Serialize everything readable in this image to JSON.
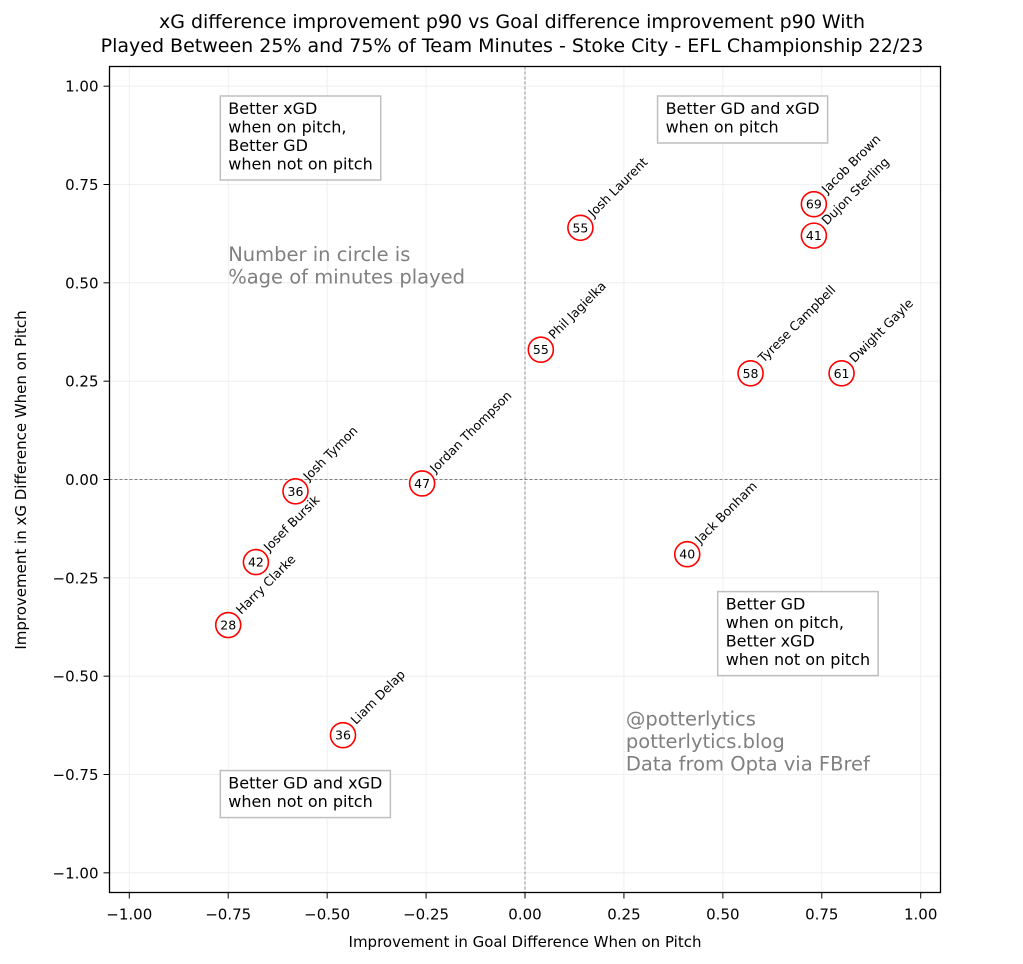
{
  "chart_data": {
    "type": "scatter",
    "title": "xG difference improvement p90 vs Goal difference improvement p90 With\nPlayed Between 25% and 75% of Team Minutes - Stoke City - EFL Championship 22/23",
    "xlabel": "Improvement in Goal Difference When on Pitch",
    "ylabel": "Improvement in xG Difference When on Pitch",
    "xlim": [
      -1.05,
      1.05
    ],
    "ylim": [
      -1.05,
      1.05
    ],
    "xticks": [
      -1.0,
      -0.75,
      -0.5,
      -0.25,
      0.0,
      0.25,
      0.5,
      0.75,
      1.0
    ],
    "yticks": [
      -1.0,
      -0.75,
      -0.5,
      -0.25,
      0.0,
      0.25,
      0.5,
      0.75,
      1.0
    ],
    "xtick_labels": [
      "−1.00",
      "−0.75",
      "−0.50",
      "−0.25",
      "0.00",
      "0.25",
      "0.50",
      "0.75",
      "1.00"
    ],
    "ytick_labels": [
      "−1.00",
      "−0.75",
      "−0.50",
      "−0.25",
      "0.00",
      "0.25",
      "0.50",
      "0.75",
      "1.00"
    ],
    "grid": true,
    "reference_lines": {
      "x": 0,
      "y": 0,
      "style": "dashed"
    },
    "marker_color": "#ff0000",
    "points": [
      {
        "name": "Josh Laurent",
        "x": 0.14,
        "y": 0.64,
        "minutes_pct": 55
      },
      {
        "name": "Jacob Brown",
        "x": 0.73,
        "y": 0.7,
        "minutes_pct": 69
      },
      {
        "name": "Dujon Sterling",
        "x": 0.73,
        "y": 0.62,
        "minutes_pct": 41
      },
      {
        "name": "Phil Jagielka",
        "x": 0.04,
        "y": 0.33,
        "minutes_pct": 55
      },
      {
        "name": "Tyrese Campbell",
        "x": 0.57,
        "y": 0.27,
        "minutes_pct": 58
      },
      {
        "name": "Dwight Gayle",
        "x": 0.8,
        "y": 0.27,
        "minutes_pct": 61
      },
      {
        "name": "Jordan Thompson",
        "x": -0.26,
        "y": -0.01,
        "minutes_pct": 47
      },
      {
        "name": "Josh Tymon",
        "x": -0.58,
        "y": -0.03,
        "minutes_pct": 36
      },
      {
        "name": "Josef Bursik",
        "x": -0.68,
        "y": -0.21,
        "minutes_pct": 42
      },
      {
        "name": "Harry Clarke",
        "x": -0.75,
        "y": -0.37,
        "minutes_pct": 28
      },
      {
        "name": "Jack Bonham",
        "x": 0.41,
        "y": -0.19,
        "minutes_pct": 40
      },
      {
        "name": "Liam Delap",
        "x": -0.46,
        "y": -0.65,
        "minutes_pct": 36
      }
    ],
    "annotations": {
      "top_left": [
        "Better xGD",
        "when on pitch,",
        "Better GD",
        "when not on pitch"
      ],
      "top_right": [
        "Better GD and xGD",
        "when on pitch"
      ],
      "bottom_right": [
        "Better GD",
        "when on pitch,",
        "Better xGD",
        "when not on pitch"
      ],
      "bottom_left": [
        "Better GD and xGD",
        "when not on pitch"
      ],
      "note": [
        "Number in circle is",
        "%age of minutes played"
      ],
      "credits": [
        "@potterlytics",
        "potterlytics.blog",
        "Data from Opta via FBref"
      ]
    }
  }
}
